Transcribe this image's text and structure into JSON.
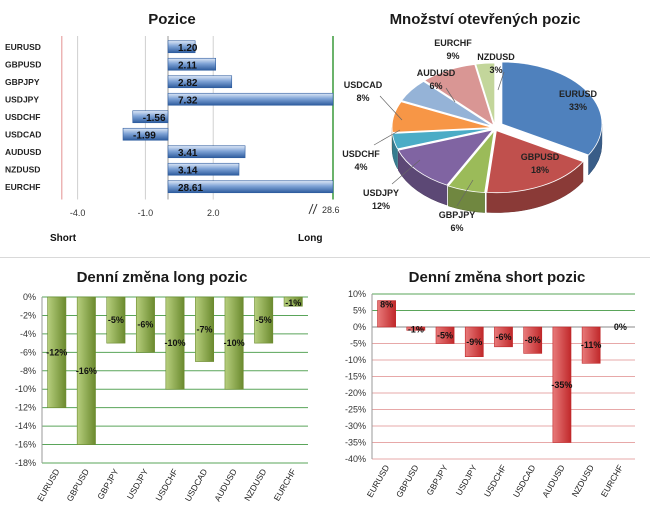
{
  "chart_data": [
    {
      "id": "pozice",
      "type": "bar",
      "orientation": "horizontal",
      "title": "Pozice",
      "categories": [
        "EURUSD",
        "GBPUSD",
        "GBPJPY",
        "USDJPY",
        "USDCHF",
        "USDCAD",
        "AUDUSD",
        "NZDUSD",
        "EURCHF"
      ],
      "values": [
        1.2,
        2.11,
        2.82,
        7.32,
        -1.56,
        -1.99,
        3.41,
        3.14,
        28.61
      ],
      "value_labels": [
        "1.20",
        "2.11",
        "2.82",
        "7.32",
        "-1.56",
        "-1.99",
        "3.41",
        "3.14",
        "28.61"
      ],
      "xlim": [
        -5,
        7.3
      ],
      "ticks": [
        -4.0,
        -1.0,
        2.0
      ],
      "tick_labels": [
        "-4.0",
        "-1.0",
        "2.0"
      ],
      "axis_break_label": "28.6",
      "short_label": "Short",
      "long_label": "Long",
      "colors": {
        "bar": "#7fa3d6",
        "bar_dark": "#2e5c9e",
        "short_line": "#e8a3a3",
        "long_line": "#3a9a3a",
        "grid": "#d0d0d0"
      }
    },
    {
      "id": "mnozstvi",
      "type": "pie",
      "title": "Množství otevřených pozic",
      "slices": [
        {
          "name": "EURUSD",
          "value": 33,
          "label": "33%",
          "color": "#4f81bd"
        },
        {
          "name": "GBPUSD",
          "value": 18,
          "label": "18%",
          "color": "#c0504d"
        },
        {
          "name": "GBPJPY",
          "value": 6,
          "label": "6%",
          "color": "#9bbb59"
        },
        {
          "name": "USDJPY",
          "value": 12,
          "label": "12%",
          "color": "#8064a2"
        },
        {
          "name": "USDCHF",
          "value": 4,
          "label": "4%",
          "color": "#4bacc6"
        },
        {
          "name": "USDCAD",
          "value": 8,
          "label": "8%",
          "color": "#f79646"
        },
        {
          "name": "AUDUSD",
          "value": 6,
          "label": "6%",
          "color": "#95b3d7"
        },
        {
          "name": "EURCHF",
          "value": 9,
          "label": "9%",
          "color": "#d99694"
        },
        {
          "name": "NZDUSD",
          "value": 3,
          "label": "3%",
          "color": "#c3d69b"
        }
      ]
    },
    {
      "id": "long",
      "type": "bar",
      "title": "Denní změna long pozic",
      "categories": [
        "EURUSD",
        "GBPUSD",
        "GBPJPY",
        "USDJPY",
        "USDCHF",
        "USDCAD",
        "AUDUSD",
        "NZDUSD",
        "EURCHF"
      ],
      "values": [
        -12,
        -16,
        -5,
        -6,
        -10,
        -7,
        -10,
        -5,
        -1
      ],
      "value_labels": [
        "-12%",
        "-16%",
        "-5%",
        "-6%",
        "-10%",
        "-7%",
        "-10%",
        "-5%",
        "-1%"
      ],
      "ylim": [
        -18,
        0
      ],
      "yticks": [
        0,
        -2,
        -4,
        -6,
        -8,
        -10,
        -12,
        -14,
        -16,
        -18
      ],
      "ytick_labels": [
        "0%",
        "-2%",
        "-4%",
        "-6%",
        "-8%",
        "-10%",
        "-12%",
        "-14%",
        "-16%",
        "-18%"
      ],
      "colors": {
        "bar": "#6b8a2e",
        "bar_light": "#b7cf7e",
        "grid": "#5aa55a"
      }
    },
    {
      "id": "short",
      "type": "bar",
      "title": "Denní změna short pozic",
      "categories": [
        "EURUSD",
        "GBPUSD",
        "GBPJPY",
        "USDJPY",
        "USDCHF",
        "USDCAD",
        "AUDUSD",
        "NZDUSD",
        "EURCHF"
      ],
      "values": [
        8,
        -1,
        -5,
        -9,
        -6,
        -8,
        -35,
        -11,
        0
      ],
      "value_labels": [
        "8%",
        "-1%",
        "-5%",
        "-9%",
        "-6%",
        "-8%",
        "-35%",
        "-11%",
        "0%"
      ],
      "ylim": [
        -40,
        10
      ],
      "yticks": [
        10,
        5,
        0,
        -5,
        -10,
        -15,
        -20,
        -25,
        -30,
        -35,
        -40
      ],
      "ytick_labels": [
        "10%",
        "5%",
        "0%",
        "-5%",
        "-10%",
        "-15%",
        "-20%",
        "-25%",
        "-30%",
        "-35%",
        "-40%"
      ],
      "colors": {
        "bar": "#c0282a",
        "bar_light": "#e87a7a",
        "grid_pos": "#5aa55a",
        "grid_neg": "#e7a8a8"
      }
    }
  ]
}
